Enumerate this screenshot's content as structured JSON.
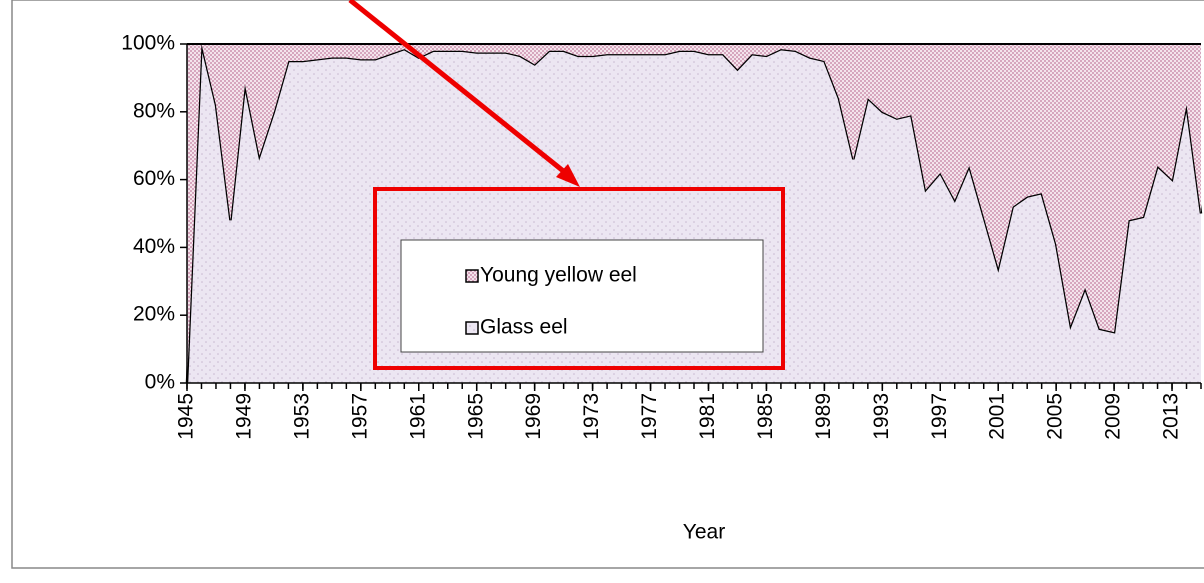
{
  "chart_data": {
    "type": "area",
    "x_label": "Year",
    "x": [
      1945,
      1946,
      1947,
      1948,
      1949,
      1950,
      1951,
      1952,
      1953,
      1954,
      1955,
      1956,
      1957,
      1958,
      1959,
      1960,
      1961,
      1962,
      1963,
      1964,
      1965,
      1966,
      1967,
      1968,
      1969,
      1970,
      1971,
      1972,
      1973,
      1974,
      1975,
      1976,
      1977,
      1978,
      1979,
      1980,
      1981,
      1982,
      1983,
      1984,
      1985,
      1986,
      1987,
      1988,
      1989,
      1990,
      1991,
      1992,
      1993,
      1994,
      1995,
      1996,
      1997,
      1998,
      1999,
      2000,
      2001,
      2002,
      2003,
      2004,
      2005,
      2006,
      2007,
      2008,
      2009,
      2010,
      2011,
      2012,
      2013,
      2014,
      2015
    ],
    "series": [
      {
        "name": "Glass eel",
        "color": "#ece6f2",
        "values": [
          0,
          100,
          82,
          48,
          88,
          67,
          80,
          95,
          95,
          95.5,
          96,
          96,
          95.5,
          95.5,
          97,
          98.5,
          96,
          98,
          98,
          98,
          97.5,
          97.5,
          97.5,
          96.5,
          94,
          98,
          98,
          96.5,
          96.5,
          97,
          97,
          97,
          97,
          97,
          98,
          98,
          97,
          97,
          92.5,
          97,
          96.5,
          98.5,
          98,
          96,
          95,
          84,
          66,
          84,
          80,
          78,
          79,
          57,
          62,
          54,
          64,
          49,
          34,
          52,
          55,
          56,
          41,
          17,
          28,
          16,
          15,
          48,
          49,
          64,
          60,
          82,
          50
        ]
      },
      {
        "name": "Young yellow eel",
        "color": "#c27a9e",
        "values": [
          100,
          0,
          18,
          52,
          12,
          33,
          20,
          5,
          5,
          4.5,
          4,
          4,
          4.5,
          4.5,
          3,
          1.5,
          4,
          2,
          2,
          2,
          2.5,
          2.5,
          2.5,
          3.5,
          6,
          2,
          2,
          3.5,
          3.5,
          3,
          3,
          3,
          3,
          3,
          2,
          2,
          3,
          3,
          7.5,
          3,
          3.5,
          1.5,
          2,
          4,
          5,
          16,
          34,
          16,
          20,
          22,
          21,
          43,
          38,
          46,
          36,
          51,
          66,
          48,
          45,
          44,
          59,
          83,
          72,
          84,
          85,
          52,
          51,
          36,
          40,
          18,
          50
        ]
      }
    ],
    "xlim": [
      1945,
      2015
    ],
    "xticks": [
      1945,
      1949,
      1953,
      1957,
      1961,
      1965,
      1969,
      1973,
      1977,
      1981,
      1985,
      1989,
      1993,
      1997,
      2001,
      2005,
      2009,
      2013
    ],
    "ylim": [
      0,
      100
    ],
    "yticks": [
      {
        "value": 0,
        "label": "0%"
      },
      {
        "value": 20,
        "label": "20%"
      },
      {
        "value": 40,
        "label": "40%"
      },
      {
        "value": 60,
        "label": "60%"
      },
      {
        "value": 80,
        "label": "80%"
      },
      {
        "value": 100,
        "label": "100%"
      }
    ],
    "stacked": true
  }
}
